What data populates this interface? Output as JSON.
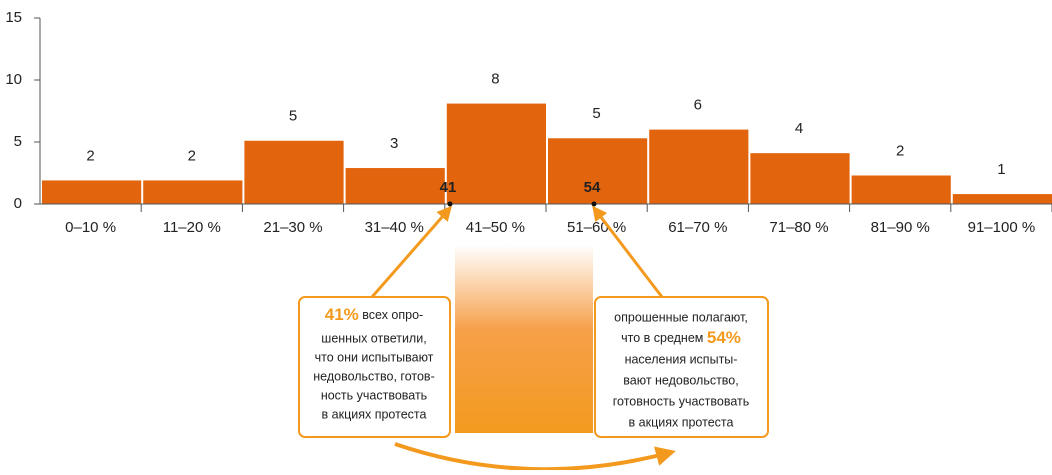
{
  "chart_data": {
    "type": "bar",
    "categories": [
      "0–10 %",
      "11–20 %",
      "21–30 %",
      "31–40 %",
      "41–50 %",
      "51–60 %",
      "61–70 %",
      "71–80 %",
      "81–90 %",
      "91–100 %"
    ],
    "values": [
      1.9,
      1.9,
      5.1,
      2.9,
      8.1,
      5.3,
      6.0,
      4.1,
      2.3,
      0.8
    ],
    "value_labels": [
      "2",
      "2",
      "5",
      "3",
      "8",
      "5",
      "6",
      "4",
      "2",
      "1"
    ],
    "color": "#e2650e",
    "ylim": [
      0,
      15
    ],
    "yticks": [
      0,
      5,
      10,
      15
    ],
    "grid": false,
    "annotations": [
      {
        "marker": "41",
        "lines": [
          "41%",
          "всех опро-",
          "шенных ответили,",
          "что они испытывают",
          "недовольство, готов-",
          "ность участвовать",
          "в акциях протеста"
        ]
      },
      {
        "marker": "54",
        "lines": [
          "опрошенные полагают,",
          "что в среднем",
          "54%",
          "населения испыты-",
          "вают недовольство,",
          "готовность участвовать",
          "в акциях протеста"
        ]
      }
    ]
  }
}
